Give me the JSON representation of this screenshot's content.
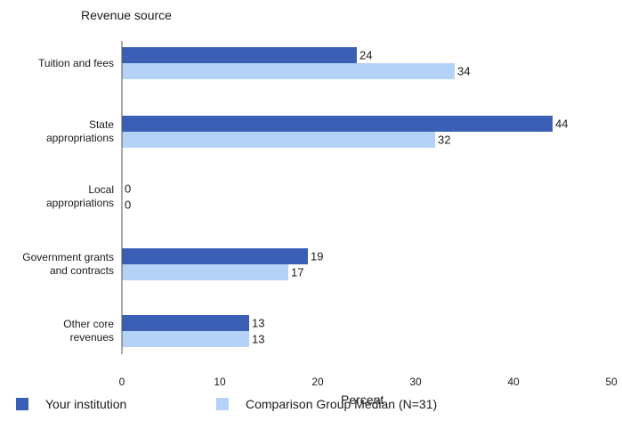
{
  "chart_data": {
    "type": "bar",
    "orientation": "horizontal",
    "ylabel": "Revenue source",
    "xlabel": "Percent",
    "xlim": [
      0,
      50
    ],
    "xticks": [
      0,
      10,
      20,
      30,
      40,
      50
    ],
    "grid": false,
    "legend_position": "bottom",
    "categories": [
      "Tuition and fees",
      "State\nappropriations",
      "Local\nappropriations",
      "Government grants\nand contracts",
      "Other core\nrevenues"
    ],
    "series": [
      {
        "name": "Your institution",
        "color": "#3a5fb5",
        "values": [
          24,
          44,
          0,
          19,
          13
        ],
        "labels": [
          "24",
          "44",
          "0",
          "19",
          "13"
        ]
      },
      {
        "name": "Comparison Group Median (N=31)",
        "color": "#b4d2f5",
        "values": [
          34,
          32,
          0,
          17,
          13
        ],
        "labels": [
          "34",
          "32",
          "0",
          "17",
          "13"
        ]
      }
    ]
  }
}
